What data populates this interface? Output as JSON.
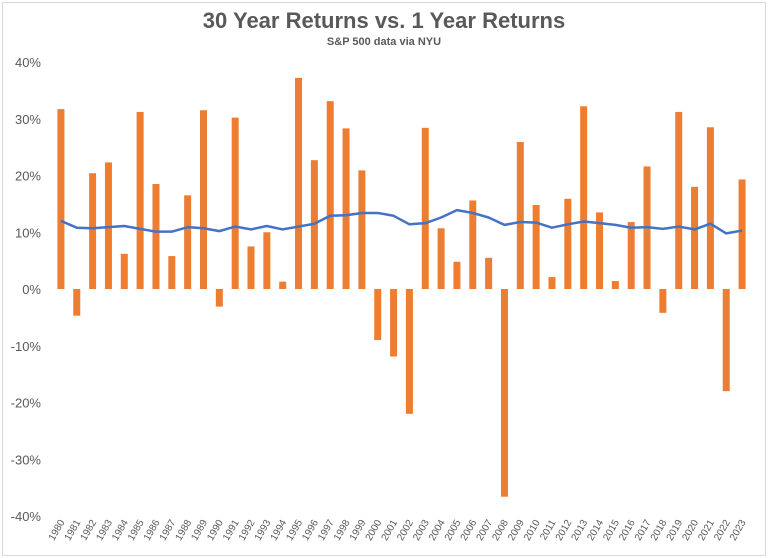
{
  "chart_data": {
    "type": "bar",
    "title": "30 Year Returns vs. 1 Year Returns",
    "subtitle": "S&P 500 data via NYU",
    "categories": [
      "1980",
      "1981",
      "1982",
      "1983",
      "1984",
      "1985",
      "1986",
      "1987",
      "1988",
      "1989",
      "1990",
      "1991",
      "1992",
      "1993",
      "1994",
      "1995",
      "1996",
      "1997",
      "1998",
      "1999",
      "2000",
      "2001",
      "2002",
      "2003",
      "2004",
      "2005",
      "2006",
      "2007",
      "2008",
      "2009",
      "2010",
      "2011",
      "2012",
      "2013",
      "2014",
      "2015",
      "2016",
      "2017",
      "2018",
      "2019",
      "2020",
      "2021",
      "2022",
      "2023"
    ],
    "series": [
      {
        "type": "bar",
        "color": "#ed7d31",
        "values": [
          31.7,
          -4.7,
          20.4,
          22.3,
          6.2,
          31.2,
          18.5,
          5.8,
          16.5,
          31.5,
          -3.1,
          30.2,
          7.5,
          10.0,
          1.3,
          37.2,
          22.7,
          33.1,
          28.3,
          20.9,
          -9.0,
          -11.9,
          -22.0,
          28.4,
          10.7,
          4.8,
          15.6,
          5.5,
          -36.6,
          25.9,
          14.8,
          2.1,
          15.9,
          32.2,
          13.5,
          1.4,
          11.8,
          21.6,
          -4.2,
          31.2,
          18.0,
          28.5,
          -18.0,
          19.3
        ]
      },
      {
        "type": "line",
        "color": "#4472c4",
        "values": [
          12.0,
          10.8,
          10.7,
          10.9,
          11.1,
          10.6,
          10.1,
          10.1,
          10.9,
          10.7,
          10.2,
          11.0,
          10.5,
          11.1,
          10.5,
          11.0,
          11.5,
          12.9,
          13.0,
          13.4,
          13.4,
          12.9,
          11.4,
          11.6,
          12.6,
          13.9,
          13.4,
          12.6,
          11.3,
          11.8,
          11.7,
          10.8,
          11.4,
          11.9,
          11.6,
          11.3,
          10.8,
          10.9,
          10.6,
          11.0,
          10.5,
          11.5,
          9.8,
          10.3
        ]
      }
    ],
    "yticks": [
      "40%",
      "30%",
      "20%",
      "10%",
      "0%",
      "-10%",
      "-20%",
      "-30%",
      "-40%"
    ],
    "ylim": [
      -40,
      40
    ],
    "grid": false,
    "legend": "none"
  }
}
